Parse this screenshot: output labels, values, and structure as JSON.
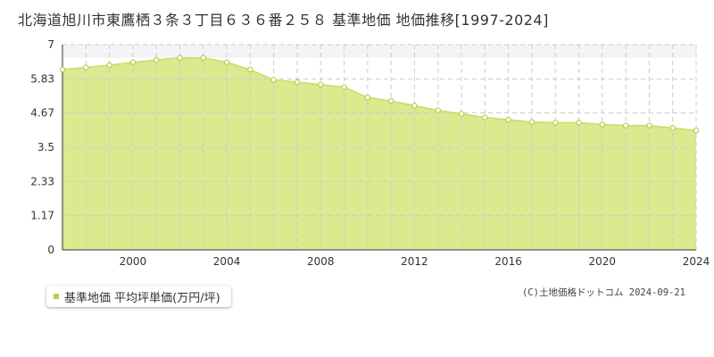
{
  "chart_data": {
    "type": "area",
    "title": "北海道旭川市東鷹栖３条３丁目６３６番２５８ 基準地価 地価推移[1997-2024]",
    "x": [
      1997,
      1998,
      1999,
      2000,
      2001,
      2002,
      2003,
      2004,
      2005,
      2006,
      2007,
      2008,
      2009,
      2010,
      2011,
      2012,
      2013,
      2014,
      2015,
      2016,
      2017,
      2018,
      2019,
      2020,
      2021,
      2022,
      2023,
      2024
    ],
    "series": [
      {
        "name": "基準地価 平均坪単価(万円/坪)",
        "values": [
          6.15,
          6.22,
          6.3,
          6.4,
          6.48,
          6.55,
          6.55,
          6.4,
          6.15,
          5.8,
          5.72,
          5.64,
          5.55,
          5.2,
          5.08,
          4.92,
          4.76,
          4.64,
          4.52,
          4.44,
          4.36,
          4.34,
          4.34,
          4.28,
          4.24,
          4.24,
          4.16,
          4.07
        ]
      }
    ],
    "x_ticks": [
      "2000",
      "2004",
      "2008",
      "2012",
      "2016",
      "2020",
      "2024"
    ],
    "x_tick_values": [
      2000,
      2004,
      2008,
      2012,
      2016,
      2020,
      2024
    ],
    "y_ticks": [
      "0",
      "1.17",
      "2.33",
      "3.5",
      "4.67",
      "5.83",
      "7"
    ],
    "y_tick_values": [
      0,
      1.17,
      2.33,
      3.5,
      4.67,
      5.83,
      7
    ],
    "xlim": [
      1997,
      2024
    ],
    "ylim": [
      0,
      7
    ],
    "grid": true,
    "legend": "bottom-left",
    "colors": {
      "fill": "#dbe98f",
      "line": "#c9dc6a",
      "marker": "#b5cf4b",
      "grid": "#cccccc",
      "band": "#f5f3f7",
      "axis": "#333333"
    }
  },
  "legend": {
    "label": "基準地価 平均坪単価(万円/坪)"
  },
  "credit": "(C)土地価格ドットコム 2024-09-21"
}
